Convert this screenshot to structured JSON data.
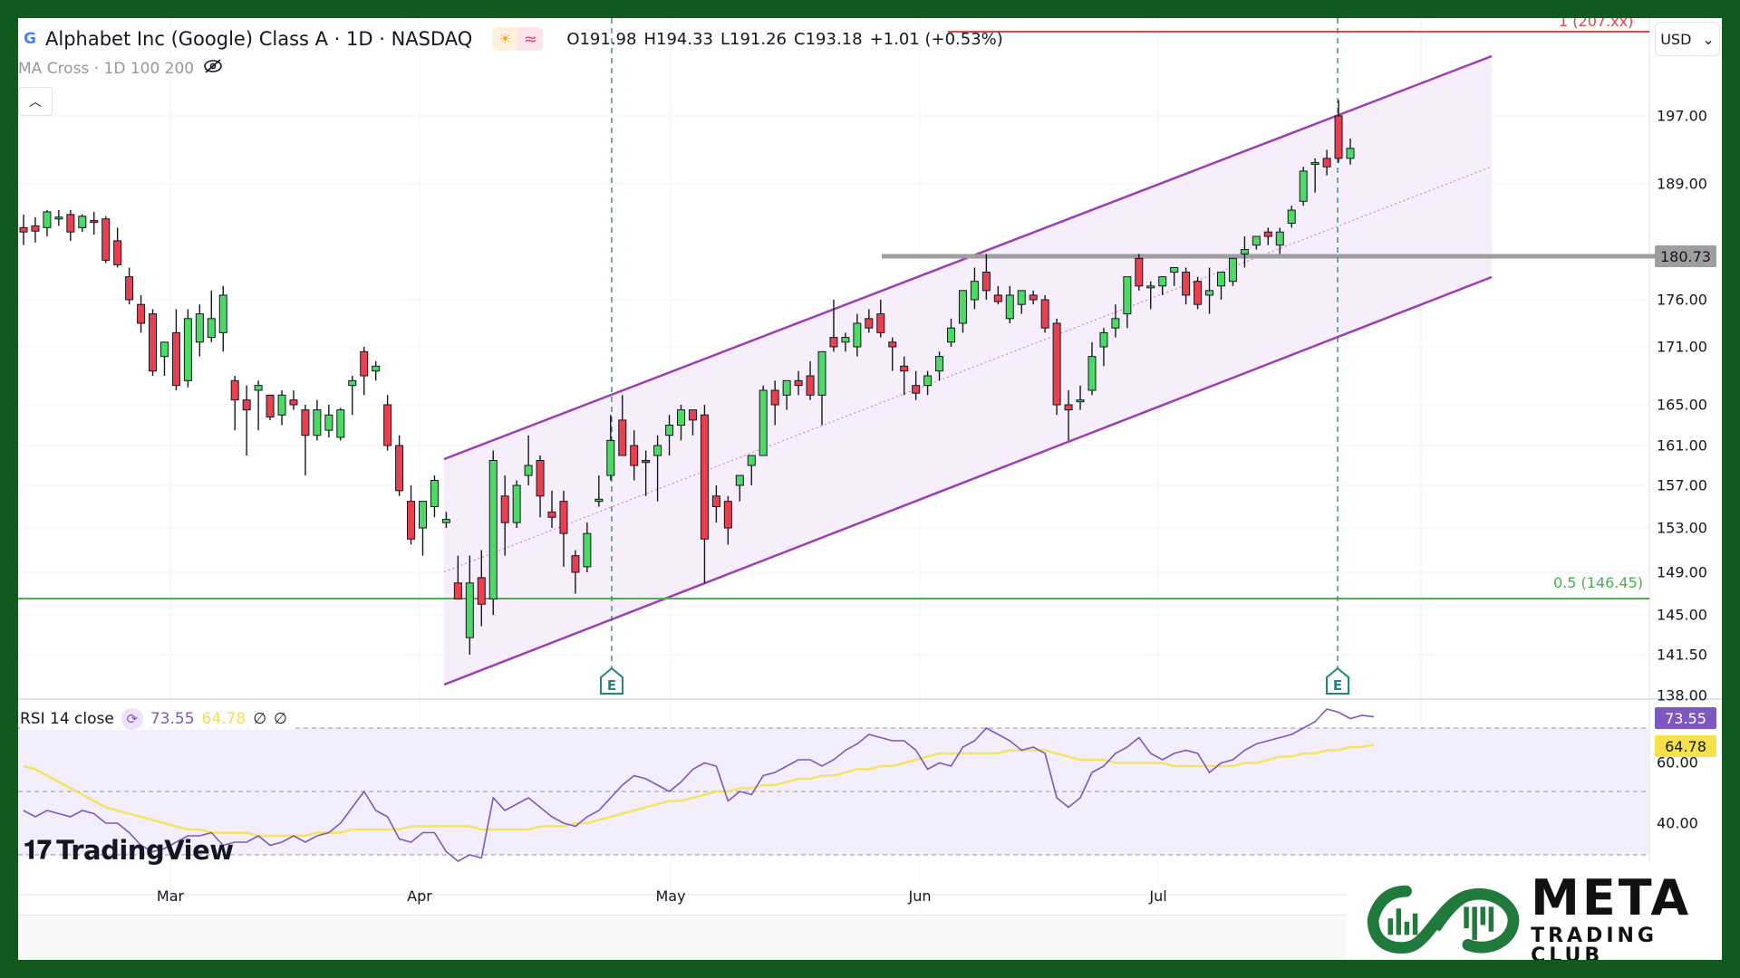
{
  "header": {
    "symbol_title": "Alphabet Inc (Google) Class A · 1D · NASDAQ",
    "logo_letter": "G",
    "session_icon": "sun-icon",
    "data_icon": "wave-icon",
    "ohlc": {
      "open": "O191.98",
      "high": "H194.33",
      "low": "L191.26",
      "close": "C193.18",
      "change": "+1.01 (+0.53%)"
    },
    "indicator_label": "MA Cross · 1D 100 200",
    "hidden_icon": "eye-off-icon",
    "collapse_icon": "chevron-up-icon",
    "currency": "USD"
  },
  "price_axis": {
    "ticks": [
      "197.00",
      "189.00",
      "176.00",
      "171.00",
      "165.00",
      "161.00",
      "157.00",
      "153.00",
      "149.00",
      "145.00",
      "141.50",
      "138.00"
    ],
    "highlight_level": "180.73"
  },
  "fib": {
    "top_label": "1 (207.xx)",
    "mid_label": "0.5 (146.45)"
  },
  "rsi": {
    "label": "RSI 14 close",
    "value": "73.55",
    "ma_value": "64.78",
    "extra1": "∅",
    "extra2": "∅",
    "axis_ticks": [
      "60.00",
      "40.00"
    ],
    "value_tag": "73.55",
    "ma_tag": "64.78"
  },
  "time_axis": {
    "months": [
      "Mar",
      "Apr",
      "May",
      "Jun",
      "Jul"
    ]
  },
  "earnings_marker": "E",
  "branding": {
    "tradingview": "TradingView",
    "meta_big": "META",
    "meta_small": "TRADING CLUB"
  },
  "colors": {
    "up": "#4cd964",
    "down": "#e8404f",
    "channel": "#9c3fb5",
    "channel_fill": "#f6eefa",
    "resistance": "#9e9e9e",
    "fib_mid": "#4caf50",
    "fib_top": "#d84a4a",
    "rsi_line": "#7e57c2",
    "rsi_ma": "#f5e14a",
    "frame": "#11591e"
  },
  "chart_data": {
    "type": "candlestick",
    "title": "Alphabet Inc (Google) Class A · 1D · NASDAQ",
    "xlabel": "",
    "ylabel": "USD",
    "ylim": [
      138,
      207
    ],
    "x_ticks": [
      "Mar",
      "Apr",
      "May",
      "Jun",
      "Jul"
    ],
    "y_ticks": [
      138,
      141.5,
      145,
      149,
      153,
      157,
      161,
      165,
      171,
      176,
      189,
      197
    ],
    "candles": [
      {
        "o": 184.0,
        "h": 185.5,
        "l": 182.0,
        "c": 183.5
      },
      {
        "o": 184.2,
        "h": 185.2,
        "l": 182.3,
        "c": 183.6
      },
      {
        "o": 184.0,
        "h": 186.0,
        "l": 183.0,
        "c": 185.8
      },
      {
        "o": 185.0,
        "h": 186.0,
        "l": 184.2,
        "c": 185.2
      },
      {
        "o": 185.5,
        "h": 186.0,
        "l": 182.5,
        "c": 183.5
      },
      {
        "o": 184.0,
        "h": 185.5,
        "l": 183.5,
        "c": 185.3
      },
      {
        "o": 184.8,
        "h": 185.8,
        "l": 183.2,
        "c": 184.6
      },
      {
        "o": 185.0,
        "h": 185.3,
        "l": 180.0,
        "c": 180.3
      },
      {
        "o": 182.5,
        "h": 184.0,
        "l": 179.5,
        "c": 179.8
      },
      {
        "o": 178.5,
        "h": 179.5,
        "l": 175.5,
        "c": 176.0
      },
      {
        "o": 175.5,
        "h": 176.5,
        "l": 172.5,
        "c": 173.5
      },
      {
        "o": 174.5,
        "h": 175.0,
        "l": 168.0,
        "c": 168.5
      },
      {
        "o": 170.0,
        "h": 171.5,
        "l": 168.0,
        "c": 171.5
      },
      {
        "o": 172.5,
        "h": 175.0,
        "l": 166.5,
        "c": 167.0
      },
      {
        "o": 167.5,
        "h": 175.0,
        "l": 166.8,
        "c": 174.0
      },
      {
        "o": 171.5,
        "h": 175.5,
        "l": 170.0,
        "c": 174.5
      },
      {
        "o": 172.0,
        "h": 177.0,
        "l": 171.5,
        "c": 174.0
      },
      {
        "o": 172.5,
        "h": 177.5,
        "l": 170.5,
        "c": 176.5
      },
      {
        "o": 167.5,
        "h": 168.0,
        "l": 162.5,
        "c": 165.5
      },
      {
        "o": 165.5,
        "h": 167.0,
        "l": 160.0,
        "c": 164.5
      },
      {
        "o": 166.5,
        "h": 167.5,
        "l": 162.5,
        "c": 167.0
      },
      {
        "o": 166.0,
        "h": 166.0,
        "l": 163.5,
        "c": 163.8
      },
      {
        "o": 164.0,
        "h": 166.5,
        "l": 163.0,
        "c": 166.0
      },
      {
        "o": 165.5,
        "h": 166.5,
        "l": 164.5,
        "c": 165.0
      },
      {
        "o": 164.5,
        "h": 165.0,
        "l": 158.0,
        "c": 162.0
      },
      {
        "o": 162.0,
        "h": 165.5,
        "l": 161.5,
        "c": 164.5
      },
      {
        "o": 162.5,
        "h": 165.0,
        "l": 161.8,
        "c": 164.0
      },
      {
        "o": 161.8,
        "h": 164.7,
        "l": 161.5,
        "c": 164.5
      },
      {
        "o": 167.0,
        "h": 168.0,
        "l": 164.0,
        "c": 167.5
      },
      {
        "o": 170.5,
        "h": 171.0,
        "l": 166.0,
        "c": 168.0
      },
      {
        "o": 168.5,
        "h": 169.5,
        "l": 167.5,
        "c": 169.0
      },
      {
        "o": 165.0,
        "h": 166.0,
        "l": 160.5,
        "c": 161.0
      },
      {
        "o": 161.0,
        "h": 162.0,
        "l": 156.0,
        "c": 156.5
      },
      {
        "o": 155.5,
        "h": 157.0,
        "l": 151.5,
        "c": 152.0
      },
      {
        "o": 153.0,
        "h": 155.5,
        "l": 150.5,
        "c": 155.5
      },
      {
        "o": 155.0,
        "h": 158.0,
        "l": 154.0,
        "c": 157.5
      },
      {
        "o": 153.5,
        "h": 154.5,
        "l": 153.0,
        "c": 153.8
      },
      {
        "o": 148.0,
        "h": 150.5,
        "l": 146.5,
        "c": 146.5
      },
      {
        "o": 143.0,
        "h": 150.5,
        "l": 141.5,
        "c": 148.0
      },
      {
        "o": 148.5,
        "h": 151.0,
        "l": 144.0,
        "c": 146.0
      },
      {
        "o": 146.5,
        "h": 160.5,
        "l": 145.0,
        "c": 159.5
      },
      {
        "o": 156.0,
        "h": 158.0,
        "l": 150.5,
        "c": 153.5
      },
      {
        "o": 153.5,
        "h": 157.5,
        "l": 153.0,
        "c": 157.0
      },
      {
        "o": 158.0,
        "h": 162.0,
        "l": 157.0,
        "c": 159.0
      },
      {
        "o": 159.5,
        "h": 160.0,
        "l": 154.0,
        "c": 156.0
      },
      {
        "o": 154.5,
        "h": 156.5,
        "l": 153.0,
        "c": 154.0
      },
      {
        "o": 155.5,
        "h": 156.5,
        "l": 149.5,
        "c": 152.5
      },
      {
        "o": 150.5,
        "h": 151.0,
        "l": 147.0,
        "c": 149.0
      },
      {
        "o": 149.5,
        "h": 153.5,
        "l": 149.0,
        "c": 152.5
      },
      {
        "o": 155.5,
        "h": 158.0,
        "l": 155.0,
        "c": 155.7
      },
      {
        "o": 158.0,
        "h": 164.0,
        "l": 157.5,
        "c": 161.5
      },
      {
        "o": 163.5,
        "h": 166.0,
        "l": 160.5,
        "c": 160.0
      },
      {
        "o": 161.0,
        "h": 162.5,
        "l": 157.5,
        "c": 159.0
      },
      {
        "o": 159.5,
        "h": 160.5,
        "l": 156.0,
        "c": 159.3
      },
      {
        "o": 160.0,
        "h": 162.0,
        "l": 155.5,
        "c": 161.0
      },
      {
        "o": 162.0,
        "h": 164.0,
        "l": 160.0,
        "c": 163.0
      },
      {
        "o": 163.0,
        "h": 165.0,
        "l": 161.5,
        "c": 164.5
      },
      {
        "o": 164.5,
        "h": 164.5,
        "l": 162.0,
        "c": 163.5
      },
      {
        "o": 164.0,
        "h": 165.0,
        "l": 148.0,
        "c": 152.0
      },
      {
        "o": 156.0,
        "h": 157.0,
        "l": 153.5,
        "c": 155.0
      },
      {
        "o": 155.5,
        "h": 156.0,
        "l": 151.5,
        "c": 153.0
      },
      {
        "o": 157.0,
        "h": 158.0,
        "l": 155.5,
        "c": 158.0
      },
      {
        "o": 159.0,
        "h": 160.0,
        "l": 157.0,
        "c": 160.0
      },
      {
        "o": 160.0,
        "h": 167.0,
        "l": 160.0,
        "c": 166.5
      },
      {
        "o": 166.5,
        "h": 167.5,
        "l": 163.0,
        "c": 165.0
      },
      {
        "o": 166.0,
        "h": 167.5,
        "l": 164.5,
        "c": 167.5
      },
      {
        "o": 167.5,
        "h": 168.5,
        "l": 166.0,
        "c": 167.0
      },
      {
        "o": 168.0,
        "h": 169.5,
        "l": 165.5,
        "c": 166.0
      },
      {
        "o": 166.0,
        "h": 170.0,
        "l": 163.0,
        "c": 170.5
      },
      {
        "o": 172.0,
        "h": 176.0,
        "l": 170.5,
        "c": 171.0
      },
      {
        "o": 171.5,
        "h": 172.5,
        "l": 170.5,
        "c": 172.0
      },
      {
        "o": 171.0,
        "h": 174.5,
        "l": 170.0,
        "c": 173.5
      },
      {
        "o": 174.0,
        "h": 175.0,
        "l": 172.5,
        "c": 173.0
      },
      {
        "o": 174.5,
        "h": 176.0,
        "l": 172.0,
        "c": 172.5
      },
      {
        "o": 171.5,
        "h": 172.0,
        "l": 168.5,
        "c": 171.0
      },
      {
        "o": 169.0,
        "h": 170.0,
        "l": 166.0,
        "c": 168.5
      },
      {
        "o": 167.0,
        "h": 168.5,
        "l": 165.5,
        "c": 166.2
      },
      {
        "o": 167.0,
        "h": 168.5,
        "l": 166.0,
        "c": 168.0
      },
      {
        "o": 168.5,
        "h": 170.5,
        "l": 167.5,
        "c": 170.0
      },
      {
        "o": 171.5,
        "h": 174.0,
        "l": 171.0,
        "c": 173.0
      },
      {
        "o": 173.5,
        "h": 176.0,
        "l": 172.5,
        "c": 177.0
      },
      {
        "o": 176.0,
        "h": 179.5,
        "l": 175.0,
        "c": 178.0
      },
      {
        "o": 179.0,
        "h": 181.0,
        "l": 176.0,
        "c": 177.0
      },
      {
        "o": 176.5,
        "h": 177.5,
        "l": 175.5,
        "c": 175.8
      },
      {
        "o": 174.0,
        "h": 177.5,
        "l": 173.5,
        "c": 176.5
      },
      {
        "o": 175.5,
        "h": 177.0,
        "l": 174.5,
        "c": 177.0
      },
      {
        "o": 176.5,
        "h": 177.0,
        "l": 175.5,
        "c": 176.0
      },
      {
        "o": 176.0,
        "h": 176.5,
        "l": 172.5,
        "c": 173.0
      },
      {
        "o": 173.5,
        "h": 174.0,
        "l": 164.0,
        "c": 165.0
      },
      {
        "o": 165.0,
        "h": 166.5,
        "l": 161.5,
        "c": 164.5
      },
      {
        "o": 165.5,
        "h": 167.0,
        "l": 164.5,
        "c": 165.5
      },
      {
        "o": 166.5,
        "h": 171.5,
        "l": 166.0,
        "c": 170.0
      },
      {
        "o": 171.0,
        "h": 173.0,
        "l": 169.0,
        "c": 172.5
      },
      {
        "o": 173.0,
        "h": 175.5,
        "l": 172.0,
        "c": 174.0
      },
      {
        "o": 174.5,
        "h": 178.5,
        "l": 173.0,
        "c": 178.5
      },
      {
        "o": 180.5,
        "h": 181.0,
        "l": 177.0,
        "c": 177.5
      },
      {
        "o": 177.5,
        "h": 178.0,
        "l": 175.0,
        "c": 177.5
      },
      {
        "o": 177.5,
        "h": 178.5,
        "l": 176.5,
        "c": 178.5
      },
      {
        "o": 179.0,
        "h": 179.5,
        "l": 177.5,
        "c": 179.5
      },
      {
        "o": 179.0,
        "h": 179.5,
        "l": 175.5,
        "c": 176.5
      },
      {
        "o": 178.0,
        "h": 178.5,
        "l": 175.0,
        "c": 175.5
      },
      {
        "o": 176.5,
        "h": 179.5,
        "l": 174.5,
        "c": 177.0
      },
      {
        "o": 177.5,
        "h": 179.0,
        "l": 176.0,
        "c": 179.0
      },
      {
        "o": 178.0,
        "h": 180.5,
        "l": 177.5,
        "c": 180.5
      },
      {
        "o": 181.0,
        "h": 183.0,
        "l": 179.5,
        "c": 181.5
      },
      {
        "o": 182.0,
        "h": 183.0,
        "l": 181.5,
        "c": 183.0
      },
      {
        "o": 183.5,
        "h": 184.0,
        "l": 182.0,
        "c": 183.0
      },
      {
        "o": 182.0,
        "h": 184.0,
        "l": 181.0,
        "c": 183.5
      },
      {
        "o": 184.5,
        "h": 186.5,
        "l": 184.0,
        "c": 186.0
      },
      {
        "o": 187.0,
        "h": 191.0,
        "l": 186.5,
        "c": 190.5
      },
      {
        "o": 191.5,
        "h": 192.0,
        "l": 188.0,
        "c": 191.5
      },
      {
        "o": 192.0,
        "h": 193.0,
        "l": 190.0,
        "c": 191.0
      },
      {
        "o": 197.0,
        "h": 198.5,
        "l": 191.5,
        "c": 192.0
      },
      {
        "o": 192.0,
        "h": 194.33,
        "l": 191.26,
        "c": 193.18
      }
    ],
    "overlays": {
      "ascending_channel": {
        "upper": [
          [
            0.0,
            163.5
          ],
          [
            1.0,
            208.0
          ]
        ],
        "lower": [
          [
            0.0,
            138.5
          ],
          [
            1.0,
            178.0
          ]
        ]
      },
      "horizontal_resistance": 180.73,
      "fib_0_5": 146.45,
      "earnings_markers": [
        "late Apr",
        "late Jul"
      ]
    },
    "rsi": {
      "period": 14,
      "last": 73.55,
      "ma_last": 64.78,
      "levels": [
        70,
        50,
        30
      ],
      "ylim": [
        25,
        78
      ],
      "values": [
        44,
        42,
        44,
        43,
        42,
        44,
        43,
        40,
        40,
        37,
        33,
        31,
        32,
        34,
        36,
        36,
        37,
        33,
        34,
        34,
        36,
        33,
        34,
        36,
        34,
        36,
        37,
        40,
        45,
        50,
        44,
        42,
        35,
        34,
        37,
        37,
        31,
        28,
        30,
        29,
        48,
        44,
        46,
        48,
        45,
        42,
        40,
        39,
        42,
        44,
        48,
        52,
        55,
        54,
        52,
        50,
        53,
        57,
        59,
        58,
        47,
        50,
        49,
        55,
        56,
        58,
        60,
        60,
        58,
        60,
        63,
        65,
        68,
        67,
        66,
        66,
        63,
        57,
        59,
        58,
        64,
        66,
        70,
        68,
        66,
        63,
        64,
        62,
        48,
        45,
        48,
        56,
        58,
        62,
        64,
        67,
        62,
        60,
        62,
        63,
        62,
        56,
        59,
        60,
        63,
        65,
        66,
        67,
        68,
        70,
        72,
        76,
        75,
        73,
        74,
        73.55
      ],
      "ma_values": [
        58,
        57,
        55,
        53,
        51,
        49,
        47,
        45,
        44,
        43,
        42,
        41,
        40,
        39,
        38,
        38,
        37,
        37,
        37,
        37,
        36,
        36,
        36,
        36,
        36,
        37,
        37,
        37,
        38,
        38,
        38,
        38,
        38,
        39,
        39,
        39,
        39,
        39,
        39,
        38,
        38,
        38,
        38,
        38,
        39,
        39,
        39,
        40,
        40,
        41,
        42,
        43,
        44,
        45,
        46,
        47,
        47,
        48,
        49,
        50,
        50,
        51,
        51,
        52,
        52,
        53,
        54,
        54,
        55,
        55,
        56,
        57,
        57,
        58,
        58,
        59,
        60,
        61,
        62,
        62,
        62,
        62,
        62,
        62,
        63,
        63,
        63,
        63,
        62,
        61,
        60,
        60,
        60,
        59,
        59,
        59,
        59,
        59,
        58,
        58,
        58,
        58,
        58,
        58,
        59,
        59,
        60,
        61,
        61,
        62,
        62,
        63,
        63,
        64,
        64,
        64.78
      ]
    }
  }
}
